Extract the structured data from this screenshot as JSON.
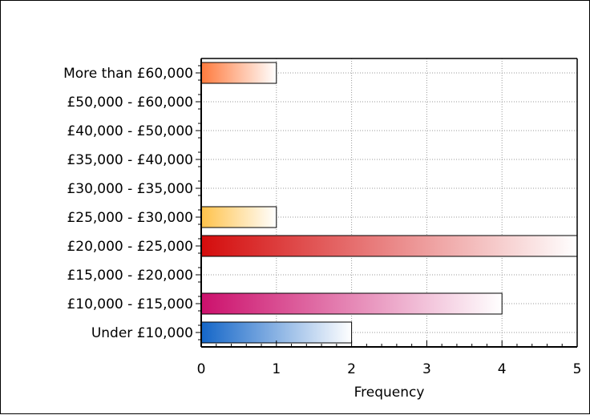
{
  "chart_data": {
    "type": "bar",
    "orientation": "horizontal",
    "categories": [
      "More than £60,000",
      "£50,000 - £60,000",
      "£40,000 - £50,000",
      "£35,000 - £40,000",
      "£30,000 - £35,000",
      "£25,000 - £30,000",
      "£20,000 - £25,000",
      "£15,000 - £20,000",
      "£10,000 - £15,000",
      "Under £10,000"
    ],
    "values": [
      1,
      0,
      0,
      0,
      0,
      1,
      5,
      0,
      4,
      2
    ],
    "bar_colors": [
      "#ff7a3d",
      "#999999",
      "#999999",
      "#999999",
      "#999999",
      "#ffc24a",
      "#d40c0c",
      "#999999",
      "#cc106c",
      "#1466c8"
    ],
    "xlabel": "Frequency",
    "xlim": [
      0,
      5
    ],
    "xticks": [
      "0",
      "1",
      "2",
      "3",
      "4",
      "5"
    ],
    "grid": true
  }
}
